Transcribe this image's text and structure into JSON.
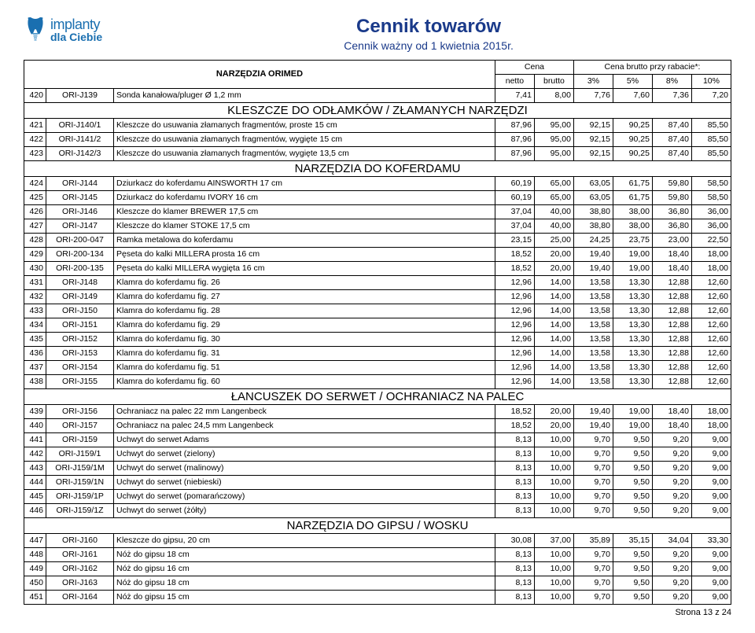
{
  "logo": {
    "line1": "implanty",
    "line2": "dla Ciebie"
  },
  "title": {
    "main": "Cennik towarów",
    "sub": "Cennik ważny od 1 kwietnia 2015r."
  },
  "header": {
    "orimed": "NARZĘDZIA ORIMED",
    "cena": "Cena",
    "rabat": "Cena brutto przy rabacie*:",
    "netto": "netto",
    "brutto": "brutto",
    "p3": "3%",
    "p5": "5%",
    "p8": "8%",
    "p10": "10%"
  },
  "footer": "Strona 13 z 24",
  "rows": [
    {
      "t": "r",
      "i": "420",
      "c": "ORI-J139",
      "d": "Sonda kanałowa/pluger Ø 1,2 mm",
      "v": [
        "7,41",
        "8,00",
        "7,76",
        "7,60",
        "7,36",
        "7,20"
      ]
    },
    {
      "t": "s",
      "d": "KLESZCZE DO ODŁAMKÓW / ZŁAMANYCH NARZĘDZI"
    },
    {
      "t": "r",
      "i": "421",
      "c": "ORI-J140/1",
      "d": "Kleszcze do usuwania złamanych fragmentów, proste 15 cm",
      "v": [
        "87,96",
        "95,00",
        "92,15",
        "90,25",
        "87,40",
        "85,50"
      ]
    },
    {
      "t": "r",
      "i": "422",
      "c": "ORI-J141/2",
      "d": "Kleszcze do usuwania złamanych fragmentów, wygięte 15 cm",
      "v": [
        "87,96",
        "95,00",
        "92,15",
        "90,25",
        "87,40",
        "85,50"
      ]
    },
    {
      "t": "r",
      "i": "423",
      "c": "ORI-J142/3",
      "d": "Kleszcze do usuwania złamanych fragmentów, wygięte 13,5 cm",
      "v": [
        "87,96",
        "95,00",
        "92,15",
        "90,25",
        "87,40",
        "85,50"
      ]
    },
    {
      "t": "s",
      "d": "NARZĘDZIA DO KOFERDAMU"
    },
    {
      "t": "r",
      "i": "424",
      "c": "ORI-J144",
      "d": "Dziurkacz do koferdamu AINSWORTH 17 cm",
      "v": [
        "60,19",
        "65,00",
        "63,05",
        "61,75",
        "59,80",
        "58,50"
      ]
    },
    {
      "t": "r",
      "i": "425",
      "c": "ORI-J145",
      "d": "Dziurkacz do koferdamu IVORY 16 cm",
      "v": [
        "60,19",
        "65,00",
        "63,05",
        "61,75",
        "59,80",
        "58,50"
      ]
    },
    {
      "t": "r",
      "i": "426",
      "c": "ORI-J146",
      "d": "Kleszcze do klamer BREWER 17,5 cm",
      "v": [
        "37,04",
        "40,00",
        "38,80",
        "38,00",
        "36,80",
        "36,00"
      ]
    },
    {
      "t": "r",
      "i": "427",
      "c": "ORI-J147",
      "d": "Kleszcze do klamer STOKE 17,5 cm",
      "v": [
        "37,04",
        "40,00",
        "38,80",
        "38,00",
        "36,80",
        "36,00"
      ]
    },
    {
      "t": "r",
      "i": "428",
      "c": "ORI-200-047",
      "d": "Ramka metalowa do koferdamu",
      "v": [
        "23,15",
        "25,00",
        "24,25",
        "23,75",
        "23,00",
        "22,50"
      ]
    },
    {
      "t": "r",
      "i": "429",
      "c": "ORI-200-134",
      "d": "Pęseta do kalki MILLERA prosta 16 cm",
      "v": [
        "18,52",
        "20,00",
        "19,40",
        "19,00",
        "18,40",
        "18,00"
      ]
    },
    {
      "t": "r",
      "i": "430",
      "c": "ORI-200-135",
      "d": "Pęseta do kalki MILLERA wygięta 16 cm",
      "v": [
        "18,52",
        "20,00",
        "19,40",
        "19,00",
        "18,40",
        "18,00"
      ]
    },
    {
      "t": "r",
      "i": "431",
      "c": "ORI-J148",
      "d": "Klamra do koferdamu fig. 26",
      "v": [
        "12,96",
        "14,00",
        "13,58",
        "13,30",
        "12,88",
        "12,60"
      ]
    },
    {
      "t": "r",
      "i": "432",
      "c": "ORI-J149",
      "d": "Klamra do koferdamu fig. 27",
      "v": [
        "12,96",
        "14,00",
        "13,58",
        "13,30",
        "12,88",
        "12,60"
      ]
    },
    {
      "t": "r",
      "i": "433",
      "c": "ORI-J150",
      "d": "Klamra do koferdamu fig. 28",
      "v": [
        "12,96",
        "14,00",
        "13,58",
        "13,30",
        "12,88",
        "12,60"
      ]
    },
    {
      "t": "r",
      "i": "434",
      "c": "ORI-J151",
      "d": "Klamra do koferdamu fig. 29",
      "v": [
        "12,96",
        "14,00",
        "13,58",
        "13,30",
        "12,88",
        "12,60"
      ]
    },
    {
      "t": "r",
      "i": "435",
      "c": "ORI-J152",
      "d": "Klamra do koferdamu fig. 30",
      "v": [
        "12,96",
        "14,00",
        "13,58",
        "13,30",
        "12,88",
        "12,60"
      ]
    },
    {
      "t": "r",
      "i": "436",
      "c": "ORI-J153",
      "d": "Klamra do koferdamu fig. 31",
      "v": [
        "12,96",
        "14,00",
        "13,58",
        "13,30",
        "12,88",
        "12,60"
      ]
    },
    {
      "t": "r",
      "i": "437",
      "c": "ORI-J154",
      "d": "Klamra do koferdamu fig. 51",
      "v": [
        "12,96",
        "14,00",
        "13,58",
        "13,30",
        "12,88",
        "12,60"
      ]
    },
    {
      "t": "r",
      "i": "438",
      "c": "ORI-J155",
      "d": "Klamra do koferdamu fig. 60",
      "v": [
        "12,96",
        "14,00",
        "13,58",
        "13,30",
        "12,88",
        "12,60"
      ]
    },
    {
      "t": "s",
      "d": "ŁANCUSZEK DO SERWET / OCHRANIACZ NA PALEC"
    },
    {
      "t": "r",
      "i": "439",
      "c": "ORI-J156",
      "d": "Ochraniacz na palec 22 mm Langenbeck",
      "v": [
        "18,52",
        "20,00",
        "19,40",
        "19,00",
        "18,40",
        "18,00"
      ]
    },
    {
      "t": "r",
      "i": "440",
      "c": "ORI-J157",
      "d": "Ochraniacz na palec 24,5 mm Langenbeck",
      "v": [
        "18,52",
        "20,00",
        "19,40",
        "19,00",
        "18,40",
        "18,00"
      ]
    },
    {
      "t": "r",
      "i": "441",
      "c": "ORI-J159",
      "d": "Uchwyt do serwet Adams",
      "v": [
        "8,13",
        "10,00",
        "9,70",
        "9,50",
        "9,20",
        "9,00"
      ]
    },
    {
      "t": "r",
      "i": "442",
      "c": "ORI-J159/1",
      "d": "Uchwyt do serwet (zielony)",
      "v": [
        "8,13",
        "10,00",
        "9,70",
        "9,50",
        "9,20",
        "9,00"
      ]
    },
    {
      "t": "r",
      "i": "443",
      "c": "ORI-J159/1M",
      "d": "Uchwyt do serwet (malinowy)",
      "v": [
        "8,13",
        "10,00",
        "9,70",
        "9,50",
        "9,20",
        "9,00"
      ]
    },
    {
      "t": "r",
      "i": "444",
      "c": "ORI-J159/1N",
      "d": "Uchwyt do serwet (niebieski)",
      "v": [
        "8,13",
        "10,00",
        "9,70",
        "9,50",
        "9,20",
        "9,00"
      ]
    },
    {
      "t": "r",
      "i": "445",
      "c": "ORI-J159/1P",
      "d": "Uchwyt do serwet (pomarańczowy)",
      "v": [
        "8,13",
        "10,00",
        "9,70",
        "9,50",
        "9,20",
        "9,00"
      ]
    },
    {
      "t": "r",
      "i": "446",
      "c": "ORI-J159/1Z",
      "d": "Uchwyt do serwet (żółty)",
      "v": [
        "8,13",
        "10,00",
        "9,70",
        "9,50",
        "9,20",
        "9,00"
      ]
    },
    {
      "t": "s",
      "d": "NARZĘDZIA DO GIPSU / WOSKU"
    },
    {
      "t": "r",
      "i": "447",
      "c": "ORI-J160",
      "d": "Kleszcze do gipsu, 20 cm",
      "v": [
        "30,08",
        "37,00",
        "35,89",
        "35,15",
        "34,04",
        "33,30"
      ]
    },
    {
      "t": "r",
      "i": "448",
      "c": "ORI-J161",
      "d": "Nóż do gipsu 18 cm",
      "v": [
        "8,13",
        "10,00",
        "9,70",
        "9,50",
        "9,20",
        "9,00"
      ]
    },
    {
      "t": "r",
      "i": "449",
      "c": "ORI-J162",
      "d": "Nóż do gipsu 16 cm",
      "v": [
        "8,13",
        "10,00",
        "9,70",
        "9,50",
        "9,20",
        "9,00"
      ]
    },
    {
      "t": "r",
      "i": "450",
      "c": "ORI-J163",
      "d": "Nóż do gipsu 18 cm",
      "v": [
        "8,13",
        "10,00",
        "9,70",
        "9,50",
        "9,20",
        "9,00"
      ]
    },
    {
      "t": "r",
      "i": "451",
      "c": "ORI-J164",
      "d": "Nóż do gipsu 15 cm",
      "v": [
        "8,13",
        "10,00",
        "9,70",
        "9,50",
        "9,20",
        "9,00"
      ]
    }
  ]
}
